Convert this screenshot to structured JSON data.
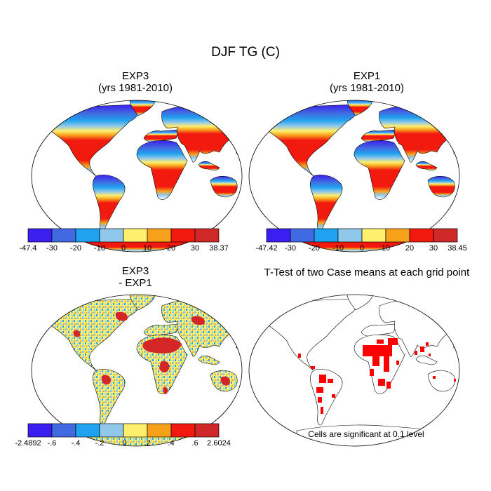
{
  "title": "DJF TG (C)",
  "panels": [
    {
      "id": "exp3",
      "title_line1": "EXP3",
      "title_line2": "(yrs 1981-2010)"
    },
    {
      "id": "exp1",
      "title_line1": "EXP1",
      "title_line2": "(yrs 1981-2010)"
    },
    {
      "id": "diff",
      "title_line1": "EXP3",
      "title_line2": "- EXP1"
    },
    {
      "id": "ttest",
      "title_line1": "T-Test of two Case means at each grid point",
      "title_line2": ""
    }
  ],
  "colorbars": [
    {
      "id": "cb-exp3",
      "labels": [
        "-47.4",
        "-30",
        "-20",
        "-10",
        "0",
        "10",
        "20",
        "30",
        "38.37"
      ]
    },
    {
      "id": "cb-exp1",
      "labels": [
        "-47.42",
        "-30",
        "-20",
        "-10",
        "0",
        "10",
        "20",
        "30",
        "38.45"
      ]
    },
    {
      "id": "cb-diff",
      "labels": [
        "-2.4892",
        "-.6",
        "-.4",
        "-.2",
        ".0",
        ".2",
        ".4",
        ".6",
        "2.6024"
      ]
    }
  ],
  "colors": [
    "#3a1ff0",
    "#4169e1",
    "#1fa2ef",
    "#8fc8ea",
    "#ffef6e",
    "#f7a11b",
    "#f21a0f",
    "#cf2828"
  ],
  "significance_color": "#ff0000",
  "note": "Cells are significant at 0.1 level"
}
